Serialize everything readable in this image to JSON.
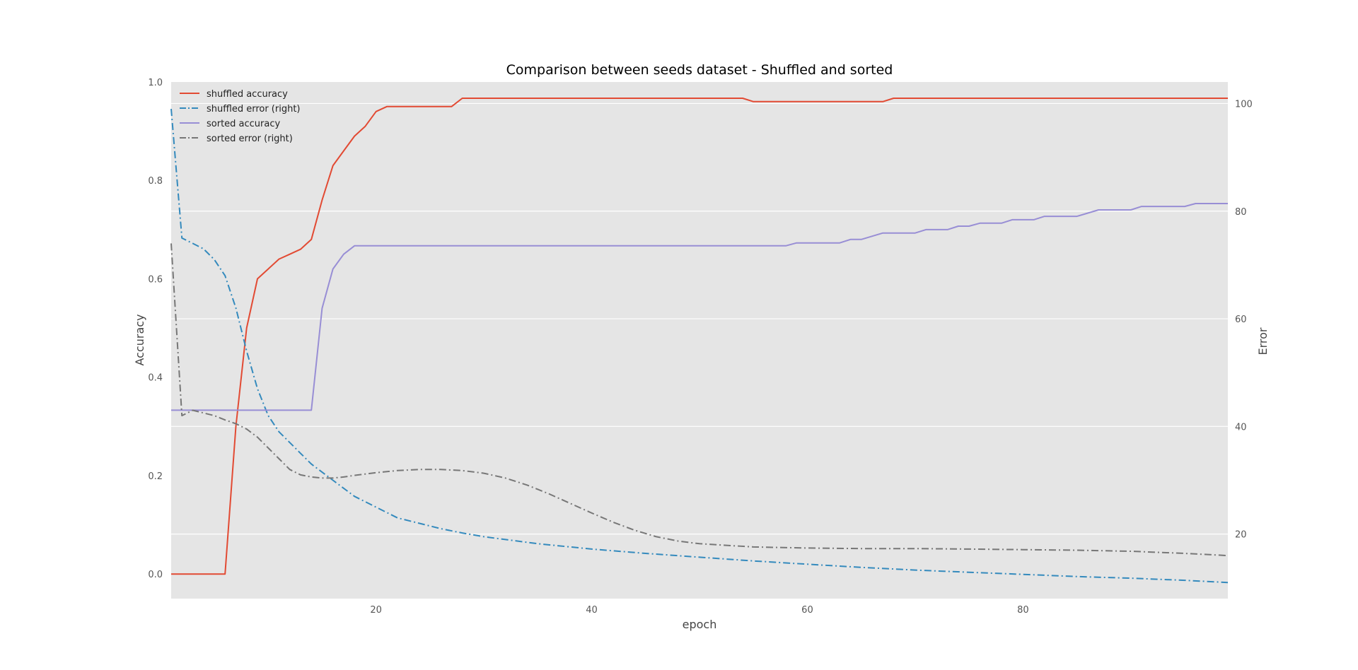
{
  "chart_data": {
    "type": "line",
    "title": "Comparison between seeds dataset - Shuffled and sorted",
    "xlabel": "epoch",
    "ylabel_left": "Accuracy",
    "ylabel_right": "Error",
    "xlim": [
      1,
      99
    ],
    "ylim_left": [
      -0.05,
      1.0
    ],
    "ylim_right": [
      8,
      104
    ],
    "x_ticks": [
      "20",
      "40",
      "60",
      "80"
    ],
    "y_left_ticks": [
      "0.0",
      "0.2",
      "0.4",
      "0.6",
      "0.8",
      "1.0"
    ],
    "y_right_ticks": [
      "20",
      "40",
      "60",
      "80",
      "100"
    ],
    "grid": true,
    "legend_position": "upper-left",
    "series": [
      {
        "name": "shuffled accuracy",
        "axis": "left",
        "style": "solid",
        "color": "#E24A33",
        "x": [
          1,
          2,
          3,
          4,
          5,
          6,
          7,
          8,
          9,
          10,
          11,
          12,
          13,
          14,
          15,
          16,
          17,
          18,
          19,
          20,
          21,
          22,
          24,
          27,
          28,
          30,
          40,
          50,
          54,
          55,
          60,
          67,
          68,
          70,
          80,
          90,
          99
        ],
        "y": [
          0.0,
          0.0,
          0.0,
          0.0,
          0.0,
          0.0,
          0.3,
          0.5,
          0.6,
          0.62,
          0.64,
          0.65,
          0.66,
          0.68,
          0.76,
          0.83,
          0.86,
          0.89,
          0.91,
          0.94,
          0.95,
          0.95,
          0.95,
          0.95,
          0.967,
          0.967,
          0.967,
          0.967,
          0.967,
          0.96,
          0.96,
          0.96,
          0.967,
          0.967,
          0.967,
          0.967,
          0.967
        ]
      },
      {
        "name": "shuffled error (right)",
        "axis": "right",
        "style": "dashdot",
        "color": "#348ABD",
        "x": [
          1,
          2,
          3,
          4,
          5,
          6,
          7,
          8,
          9,
          10,
          11,
          12,
          13,
          14,
          16,
          18,
          20,
          22,
          24,
          26,
          28,
          30,
          35,
          40,
          45,
          50,
          55,
          60,
          65,
          70,
          75,
          80,
          85,
          90,
          95,
          99
        ],
        "y": [
          99,
          75,
          74,
          73,
          71,
          68,
          62,
          54,
          47,
          42,
          39,
          37,
          35,
          33,
          30,
          27,
          25,
          23,
          22,
          21,
          20.2,
          19.5,
          18.2,
          17.2,
          16.4,
          15.7,
          15.0,
          14.4,
          13.8,
          13.3,
          12.9,
          12.5,
          12.1,
          11.8,
          11.4,
          11.0
        ]
      },
      {
        "name": "sorted accuracy",
        "axis": "left",
        "style": "solid",
        "color": "#988ED5",
        "x": [
          1,
          14,
          15,
          16,
          17,
          18,
          58,
          59,
          63,
          64,
          65,
          67,
          70,
          71,
          73,
          74,
          75,
          76,
          78,
          79,
          81,
          82,
          85,
          87,
          90,
          91,
          95,
          96,
          99
        ],
        "y": [
          0.333,
          0.333,
          0.54,
          0.62,
          0.65,
          0.667,
          0.667,
          0.673,
          0.673,
          0.68,
          0.68,
          0.693,
          0.693,
          0.7,
          0.7,
          0.707,
          0.707,
          0.713,
          0.713,
          0.72,
          0.72,
          0.727,
          0.727,
          0.74,
          0.74,
          0.747,
          0.747,
          0.753,
          0.753
        ]
      },
      {
        "name": "sorted error (right)",
        "axis": "right",
        "style": "dashdot",
        "color": "#777777",
        "x": [
          1,
          2,
          3,
          4,
          5,
          6,
          7,
          8,
          9,
          10,
          11,
          12,
          13,
          14,
          15,
          16,
          17,
          18,
          20,
          22,
          24,
          26,
          28,
          30,
          32,
          34,
          36,
          38,
          40,
          42,
          44,
          46,
          48,
          50,
          55,
          60,
          65,
          70,
          75,
          80,
          85,
          90,
          95,
          99
        ],
        "y": [
          74,
          42,
          43,
          42.5,
          42,
          41.2,
          40.5,
          39.5,
          38,
          36,
          34,
          32,
          31,
          30.6,
          30.4,
          30.4,
          30.6,
          30.9,
          31.4,
          31.8,
          32.0,
          32.0,
          31.8,
          31.3,
          30.4,
          29.1,
          27.5,
          25.7,
          23.9,
          22.2,
          20.7,
          19.5,
          18.7,
          18.2,
          17.6,
          17.4,
          17.3,
          17.3,
          17.2,
          17.1,
          17.0,
          16.8,
          16.4,
          16.0
        ]
      }
    ]
  }
}
